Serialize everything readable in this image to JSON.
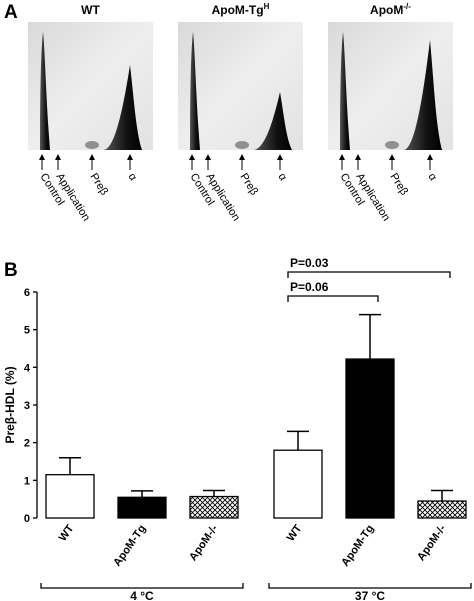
{
  "panel_a": {
    "label": "A",
    "gels": [
      {
        "text": "WT"
      },
      {
        "text": "ApoM-Tg",
        "sup": "H"
      },
      {
        "text": "ApoM",
        "sup": "-/-"
      }
    ],
    "markers": [
      "Control",
      "Application",
      "Preβ",
      "α"
    ]
  },
  "chart_data": {
    "type": "bar",
    "panel_label": "B",
    "y_label": "Preβ-HDL (%)",
    "categories": [
      "WT",
      "ApoM-Tg",
      "ApoM-/-",
      "WT",
      "ApoM-Tg",
      "ApoM-/-"
    ],
    "values": [
      1.15,
      0.55,
      0.57,
      1.8,
      4.22,
      0.45
    ],
    "errors": [
      0.45,
      0.17,
      0.16,
      0.5,
      1.18,
      0.28
    ],
    "fills": [
      "#ffffff",
      "#000000",
      "crosshatch",
      "#ffffff",
      "#000000",
      "crosshatch"
    ],
    "group_labels": [
      "4 °C",
      "37 °C"
    ],
    "annotations": [
      {
        "text": "P=0.06",
        "pair": [
          3,
          4
        ]
      },
      {
        "text": "P=0.03",
        "pair": [
          3,
          5
        ]
      }
    ],
    "ylim": [
      0,
      6
    ],
    "yticks": [
      0,
      1,
      2,
      3,
      4,
      5,
      6
    ]
  }
}
